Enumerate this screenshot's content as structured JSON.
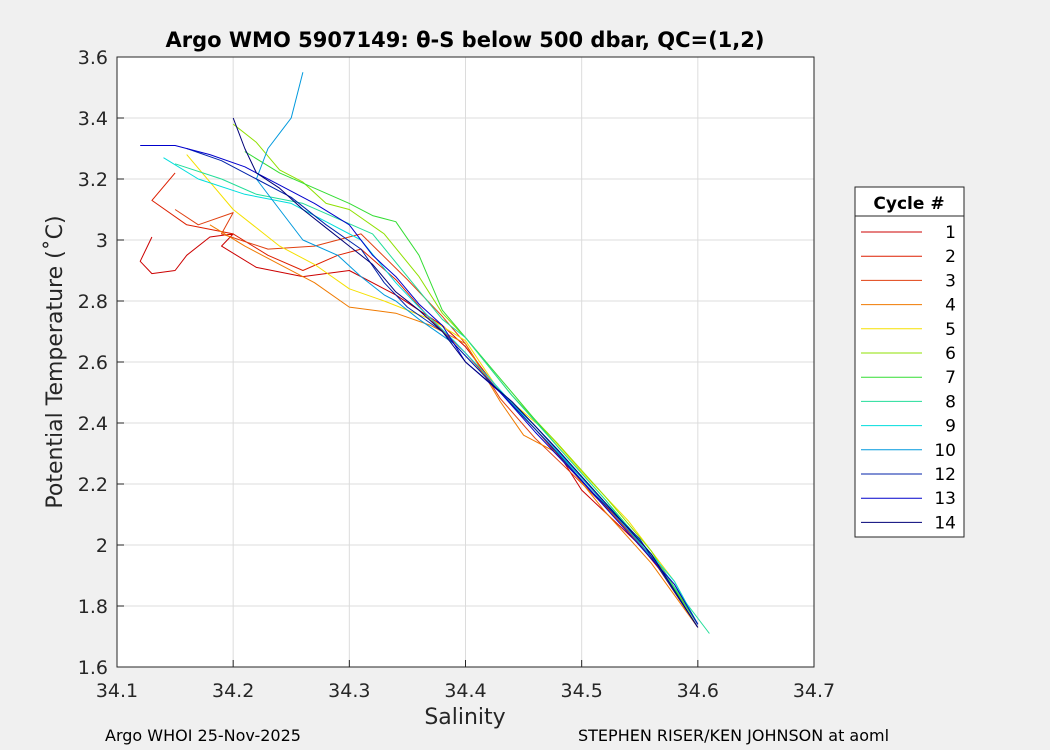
{
  "footer": {
    "left": "Argo WHOI 25-Nov-2025",
    "right": "STEPHEN RISER/KEN JOHNSON at aoml"
  },
  "chart_data": {
    "type": "line",
    "title": "Argo WMO 5907149: θ-S below 500 dbar,  QC=(1,2)",
    "xlabel": "Salinity",
    "ylabel": "Potential Temperature (˚C)",
    "xlim": [
      34.1,
      34.7
    ],
    "ylim": [
      1.6,
      3.6
    ],
    "xticks": [
      "34.1",
      "34.2",
      "34.3",
      "34.4",
      "34.5",
      "34.6",
      "34.7"
    ],
    "yticks": [
      "1.6",
      "1.8",
      "2",
      "2.2",
      "2.4",
      "2.6",
      "2.8",
      "3",
      "3.2",
      "3.4",
      "3.6"
    ],
    "grid": true,
    "legend": {
      "title": "Cycle #",
      "placement": "right"
    },
    "series": [
      {
        "name": "1",
        "color": "#cc0000",
        "x": [
          34.13,
          34.12,
          34.13,
          34.15,
          34.16,
          34.18,
          34.2,
          34.19,
          34.22,
          34.26,
          34.3,
          34.34,
          34.36,
          34.38,
          34.4,
          34.42,
          34.45,
          34.48,
          34.5,
          34.55,
          34.58,
          34.6
        ],
        "y": [
          3.01,
          2.93,
          2.89,
          2.9,
          2.95,
          3.01,
          3.02,
          2.98,
          2.91,
          2.88,
          2.9,
          2.82,
          2.77,
          2.72,
          2.65,
          2.55,
          2.42,
          2.3,
          2.18,
          2.0,
          1.86,
          1.74
        ]
      },
      {
        "name": "2",
        "color": "#dd1f00",
        "x": [
          34.15,
          34.13,
          34.16,
          34.2,
          34.23,
          34.26,
          34.29,
          34.31,
          34.34,
          34.37,
          34.4,
          34.43,
          34.46,
          34.49,
          34.52,
          34.56,
          34.6
        ],
        "y": [
          3.22,
          3.13,
          3.05,
          3.02,
          2.95,
          2.9,
          2.95,
          2.97,
          2.87,
          2.74,
          2.63,
          2.5,
          2.38,
          2.25,
          2.13,
          1.96,
          1.73
        ]
      },
      {
        "name": "3",
        "color": "#e04010",
        "x": [
          34.15,
          34.17,
          34.2,
          34.19,
          34.23,
          34.27,
          34.31,
          34.35,
          34.38,
          34.4,
          34.43,
          34.46,
          34.49,
          34.53,
          34.57,
          34.6
        ],
        "y": [
          3.1,
          3.05,
          3.09,
          3.02,
          2.97,
          2.98,
          3.02,
          2.87,
          2.75,
          2.66,
          2.48,
          2.35,
          2.24,
          2.09,
          1.92,
          1.74
        ]
      },
      {
        "name": "4",
        "color": "#f07a00",
        "x": [
          34.18,
          34.21,
          34.24,
          34.27,
          34.3,
          34.34,
          34.37,
          34.4,
          34.43,
          34.45,
          34.48,
          34.52,
          34.56,
          34.6
        ],
        "y": [
          3.05,
          2.98,
          2.92,
          2.86,
          2.78,
          2.76,
          2.72,
          2.66,
          2.47,
          2.36,
          2.3,
          2.11,
          1.94,
          1.73
        ]
      },
      {
        "name": "5",
        "color": "#f5e000",
        "x": [
          34.16,
          34.2,
          34.24,
          34.27,
          34.3,
          34.33,
          34.37,
          34.4,
          34.43,
          34.47,
          34.5,
          34.54,
          34.58,
          34.6
        ],
        "y": [
          3.28,
          3.1,
          2.98,
          2.92,
          2.84,
          2.8,
          2.74,
          2.67,
          2.5,
          2.37,
          2.24,
          2.08,
          1.88,
          1.74
        ]
      },
      {
        "name": "6",
        "color": "#8fe000",
        "x": [
          34.2,
          34.22,
          34.24,
          34.26,
          34.28,
          34.3,
          34.33,
          34.36,
          34.38,
          34.4,
          34.44,
          34.48,
          34.52,
          34.56,
          34.6
        ],
        "y": [
          3.38,
          3.32,
          3.23,
          3.19,
          3.12,
          3.1,
          3.02,
          2.88,
          2.76,
          2.68,
          2.49,
          2.33,
          2.16,
          1.98,
          1.74
        ]
      },
      {
        "name": "7",
        "color": "#33dd33",
        "x": [
          34.21,
          34.24,
          34.27,
          34.3,
          34.32,
          34.34,
          34.36,
          34.38,
          34.4,
          34.44,
          34.48,
          34.52,
          34.56,
          34.6
        ],
        "y": [
          3.29,
          3.22,
          3.17,
          3.12,
          3.08,
          3.06,
          2.95,
          2.77,
          2.68,
          2.5,
          2.32,
          2.15,
          1.97,
          1.74
        ]
      },
      {
        "name": "8",
        "color": "#22dd99",
        "x": [
          34.15,
          34.19,
          34.22,
          34.26,
          34.29,
          34.32,
          34.35,
          34.38,
          34.4,
          34.44,
          34.48,
          34.52,
          34.56,
          34.61
        ],
        "y": [
          3.25,
          3.2,
          3.15,
          3.12,
          3.07,
          3.02,
          2.88,
          2.74,
          2.68,
          2.49,
          2.32,
          2.15,
          1.96,
          1.71
        ]
      },
      {
        "name": "9",
        "color": "#00dddd",
        "x": [
          34.14,
          34.17,
          34.21,
          34.25,
          34.28,
          34.31,
          34.34,
          34.36,
          34.39,
          34.42,
          34.46,
          34.5,
          34.54,
          34.58,
          34.6
        ],
        "y": [
          3.27,
          3.2,
          3.15,
          3.12,
          3.06,
          3.0,
          2.86,
          2.78,
          2.67,
          2.55,
          2.38,
          2.22,
          2.06,
          1.88,
          1.74
        ]
      },
      {
        "name": "10",
        "color": "#0099dd",
        "x": [
          34.26,
          34.25,
          34.23,
          34.22,
          34.24,
          34.26,
          34.29,
          34.31,
          34.33,
          34.34,
          34.36,
          34.39,
          34.42,
          34.46,
          34.5,
          34.54,
          34.58,
          34.6
        ],
        "y": [
          3.55,
          3.4,
          3.3,
          3.2,
          3.1,
          3.0,
          2.95,
          2.88,
          2.82,
          2.8,
          2.74,
          2.66,
          2.54,
          2.39,
          2.22,
          2.05,
          1.87,
          1.74
        ]
      },
      {
        "name": "12",
        "color": "#0022aa",
        "x": [
          34.16,
          34.19,
          34.22,
          34.25,
          34.28,
          34.31,
          34.33,
          34.35,
          34.38,
          34.4,
          34.43,
          34.47,
          34.51,
          34.55,
          34.6
        ],
        "y": [
          3.3,
          3.26,
          3.2,
          3.14,
          3.05,
          2.97,
          2.86,
          2.78,
          2.7,
          2.62,
          2.5,
          2.34,
          2.17,
          2.02,
          1.73
        ]
      },
      {
        "name": "13",
        "color": "#0000cc",
        "x": [
          34.12,
          34.15,
          34.18,
          34.21,
          34.24,
          34.27,
          34.3,
          34.32,
          34.34,
          34.36,
          34.38,
          34.4,
          34.43,
          34.46,
          34.5,
          34.54,
          34.58,
          34.6
        ],
        "y": [
          3.31,
          3.31,
          3.28,
          3.24,
          3.18,
          3.12,
          3.05,
          2.95,
          2.88,
          2.79,
          2.72,
          2.6,
          2.5,
          2.37,
          2.21,
          2.04,
          1.87,
          1.74
        ]
      },
      {
        "name": "14",
        "color": "#000077",
        "x": [
          34.2,
          34.21,
          34.22,
          34.24,
          34.26,
          34.28,
          34.3,
          34.32,
          34.34,
          34.36,
          34.38,
          34.4,
          34.44,
          34.48,
          34.52,
          34.56,
          34.6
        ],
        "y": [
          3.4,
          3.3,
          3.22,
          3.17,
          3.1,
          3.04,
          2.98,
          2.92,
          2.83,
          2.77,
          2.7,
          2.6,
          2.47,
          2.31,
          2.14,
          1.97,
          1.73
        ]
      }
    ]
  }
}
